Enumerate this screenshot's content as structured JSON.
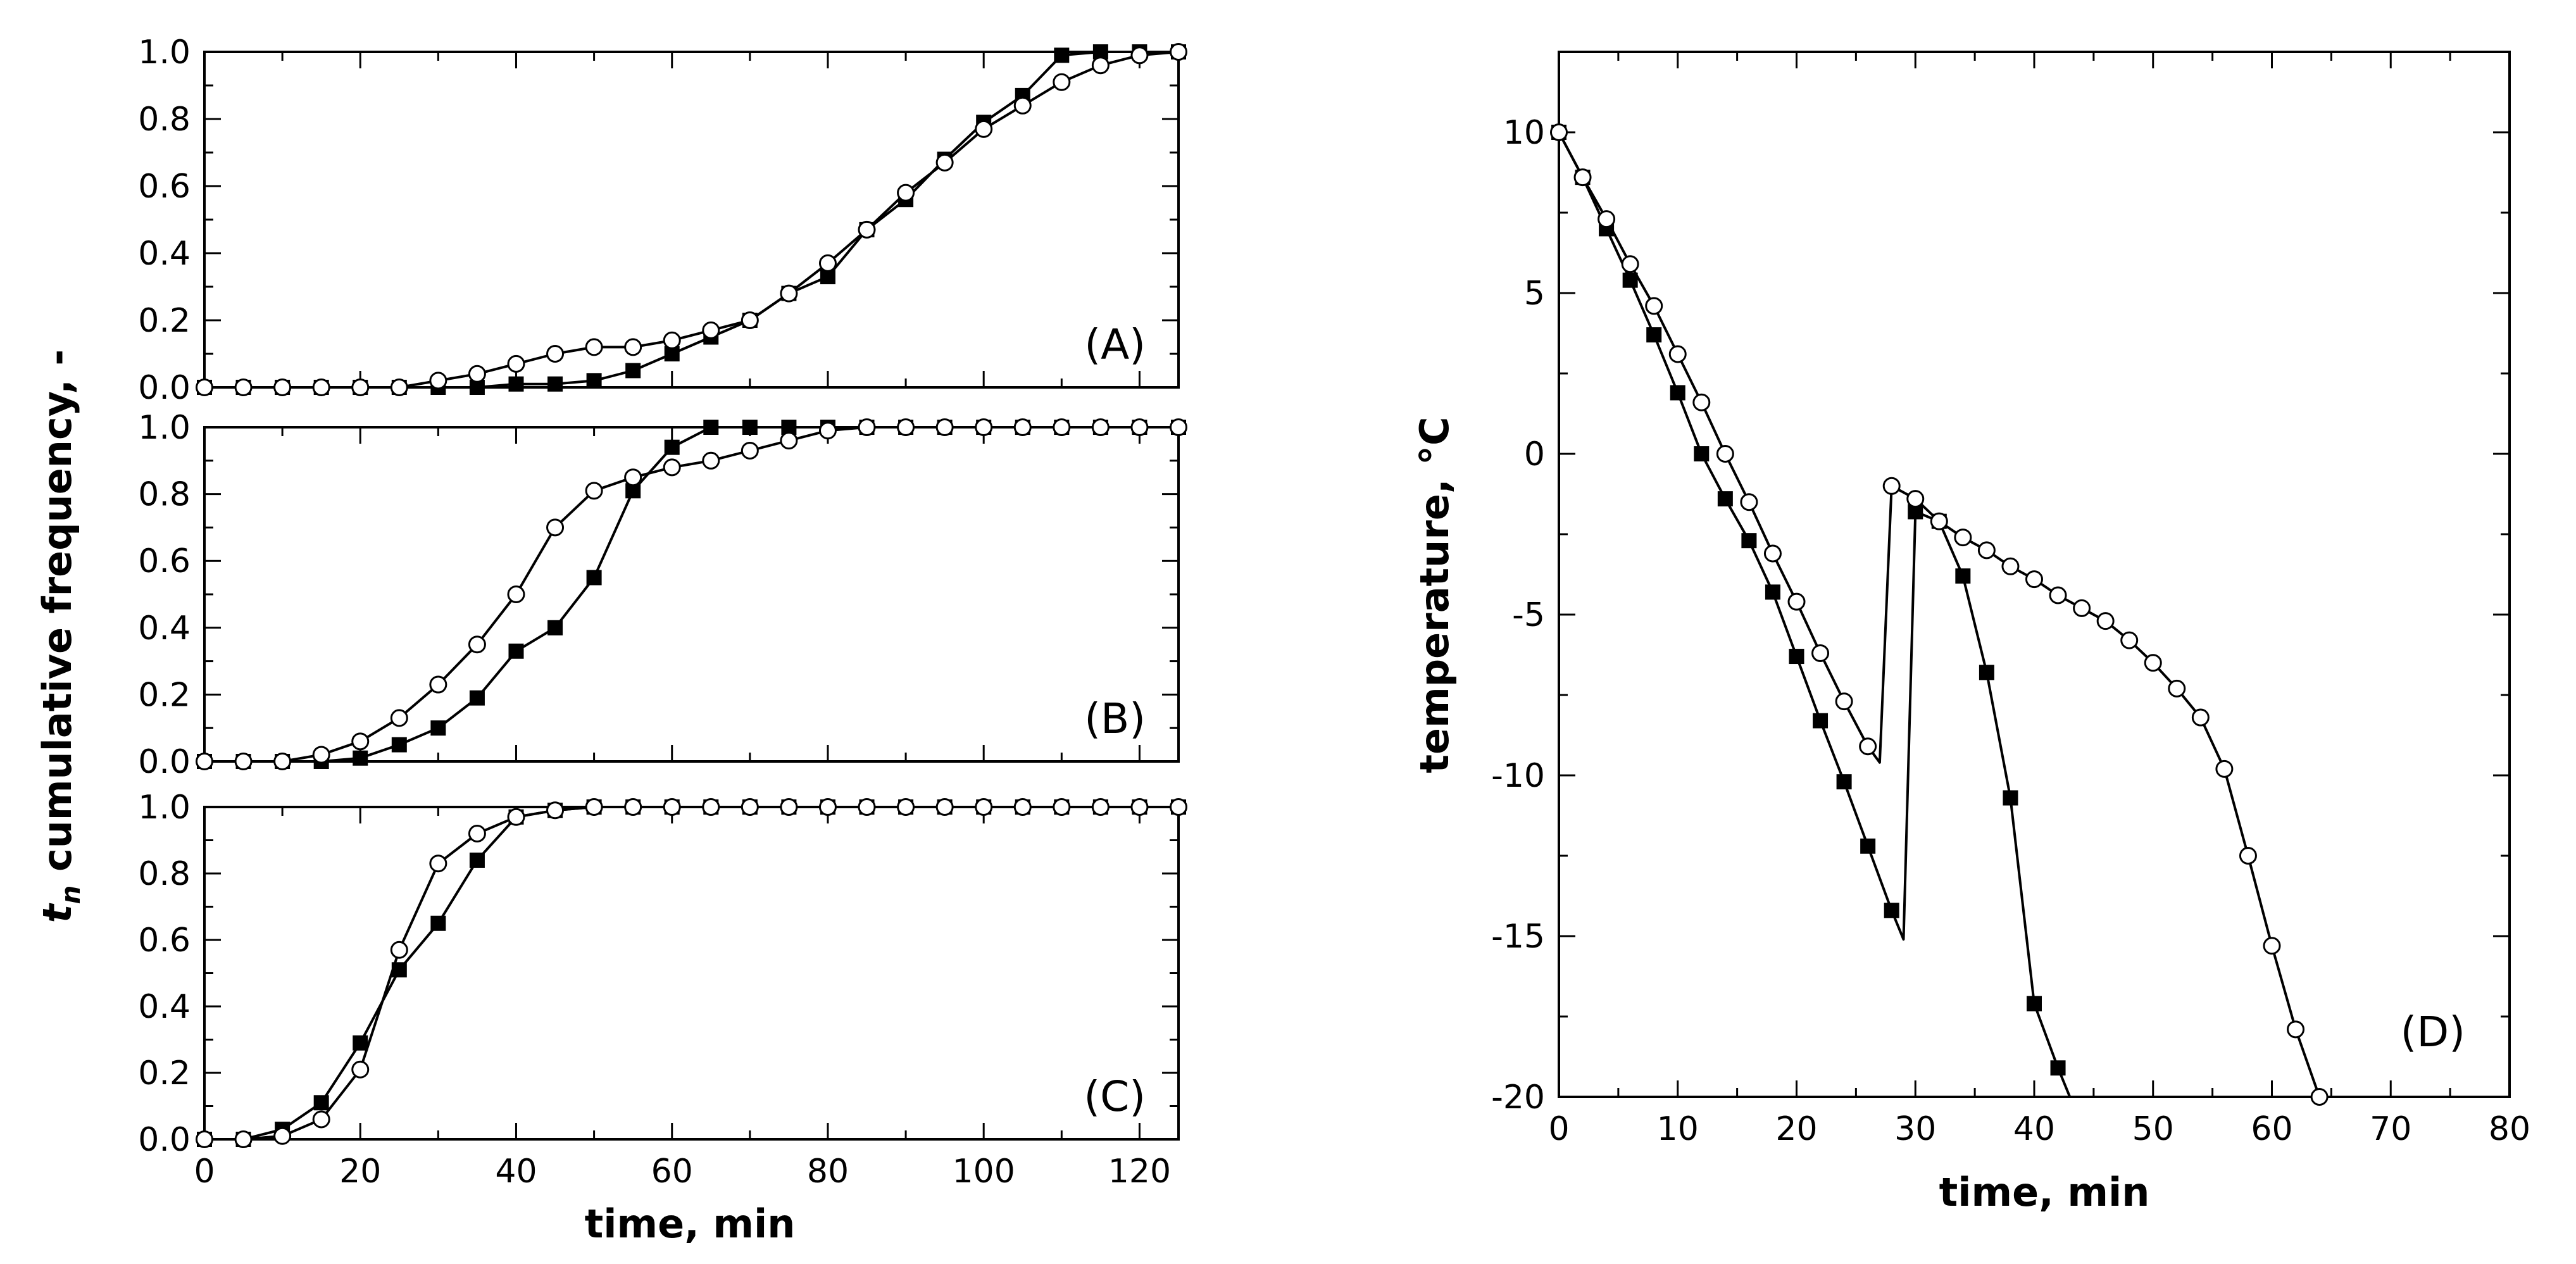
{
  "figure": {
    "left_xlabel": "time, min",
    "left_ylabel_main": "t",
    "left_ylabel_sub": "n",
    "left_ylabel_rest": " cumulative frequency, -",
    "right_xlabel": "time, min",
    "right_ylabel": "temperature, °C"
  },
  "chart_data": [
    {
      "id": "A",
      "type": "line",
      "panel_label": "(A)",
      "xlim": [
        0,
        125
      ],
      "ylim": [
        0,
        1
      ],
      "xticks": [
        0,
        20,
        40,
        60,
        80,
        100,
        120
      ],
      "yticks": [
        "0.0",
        "0.2",
        "0.4",
        "0.6",
        "0.8",
        "1.0"
      ],
      "xtick_labels_visible": false,
      "series": [
        {
          "name": "filled squares",
          "marker": "square-filled",
          "x": [
            0,
            5,
            10,
            15,
            20,
            25,
            30,
            35,
            40,
            45,
            50,
            55,
            60,
            65,
            70,
            75,
            80,
            85,
            90,
            95,
            100,
            105,
            110,
            115,
            120,
            125
          ],
          "y": [
            0,
            0,
            0,
            0,
            0,
            0,
            0,
            0,
            0.01,
            0.01,
            0.02,
            0.05,
            0.1,
            0.15,
            0.2,
            0.28,
            0.33,
            0.47,
            0.56,
            0.68,
            0.79,
            0.87,
            0.99,
            1.0,
            1.0,
            1.0
          ]
        },
        {
          "name": "open circles",
          "marker": "circle-open",
          "x": [
            0,
            5,
            10,
            15,
            20,
            25,
            30,
            35,
            40,
            45,
            50,
            55,
            60,
            65,
            70,
            75,
            80,
            85,
            90,
            95,
            100,
            105,
            110,
            115,
            120,
            125
          ],
          "y": [
            0,
            0,
            0,
            0,
            0,
            0,
            0.02,
            0.04,
            0.07,
            0.1,
            0.12,
            0.12,
            0.14,
            0.17,
            0.2,
            0.28,
            0.37,
            0.47,
            0.58,
            0.67,
            0.77,
            0.84,
            0.91,
            0.96,
            0.99,
            1.0
          ]
        }
      ]
    },
    {
      "id": "B",
      "type": "line",
      "panel_label": "(B)",
      "xlim": [
        0,
        125
      ],
      "ylim": [
        0,
        1
      ],
      "xticks": [
        0,
        20,
        40,
        60,
        80,
        100,
        120
      ],
      "yticks": [
        "0.0",
        "0.2",
        "0.4",
        "0.6",
        "0.8",
        "1.0"
      ],
      "xtick_labels_visible": false,
      "series": [
        {
          "name": "filled squares",
          "marker": "square-filled",
          "x": [
            0,
            5,
            10,
            15,
            20,
            25,
            30,
            35,
            40,
            45,
            50,
            55,
            60,
            65,
            70,
            75,
            80,
            85,
            90,
            95,
            100,
            105,
            110,
            115,
            120,
            125
          ],
          "y": [
            0,
            0,
            0,
            0,
            0.01,
            0.05,
            0.1,
            0.19,
            0.33,
            0.4,
            0.55,
            0.81,
            0.94,
            1.0,
            1.0,
            1.0,
            1.0,
            1.0,
            1.0,
            1.0,
            1.0,
            1.0,
            1.0,
            1.0,
            1.0,
            1.0
          ]
        },
        {
          "name": "open circles",
          "marker": "circle-open",
          "x": [
            0,
            5,
            10,
            15,
            20,
            25,
            30,
            35,
            40,
            45,
            50,
            55,
            60,
            65,
            70,
            75,
            80,
            85,
            90,
            95,
            100,
            105,
            110,
            115,
            120,
            125
          ],
          "y": [
            0,
            0,
            0,
            0.02,
            0.06,
            0.13,
            0.23,
            0.35,
            0.5,
            0.7,
            0.81,
            0.85,
            0.88,
            0.9,
            0.93,
            0.96,
            0.99,
            1.0,
            1.0,
            1.0,
            1.0,
            1.0,
            1.0,
            1.0,
            1.0,
            1.0
          ]
        }
      ]
    },
    {
      "id": "C",
      "type": "line",
      "panel_label": "(C)",
      "xlim": [
        0,
        125
      ],
      "ylim": [
        0,
        1
      ],
      "xticks": [
        0,
        20,
        40,
        60,
        80,
        100,
        120
      ],
      "yticks": [
        "0.0",
        "0.2",
        "0.4",
        "0.6",
        "0.8",
        "1.0"
      ],
      "xtick_labels_visible": true,
      "xlabel": "time, min",
      "series": [
        {
          "name": "filled squares",
          "marker": "square-filled",
          "x": [
            0,
            5,
            10,
            15,
            20,
            25,
            30,
            35,
            40,
            45,
            50,
            55,
            60,
            65,
            70,
            75,
            80,
            85,
            90,
            95,
            100,
            105,
            110,
            115,
            120,
            125
          ],
          "y": [
            0,
            0,
            0.03,
            0.11,
            0.29,
            0.51,
            0.65,
            0.84,
            0.97,
            0.99,
            1.0,
            1.0,
            1.0,
            1.0,
            1.0,
            1.0,
            1.0,
            1.0,
            1.0,
            1.0,
            1.0,
            1.0,
            1.0,
            1.0,
            1.0,
            1.0
          ]
        },
        {
          "name": "open circles",
          "marker": "circle-open",
          "x": [
            0,
            5,
            10,
            15,
            20,
            25,
            30,
            35,
            40,
            45,
            50,
            55,
            60,
            65,
            70,
            75,
            80,
            85,
            90,
            95,
            100,
            105,
            110,
            115,
            120,
            125
          ],
          "y": [
            0,
            0,
            0.01,
            0.06,
            0.21,
            0.57,
            0.83,
            0.92,
            0.97,
            0.99,
            1.0,
            1.0,
            1.0,
            1.0,
            1.0,
            1.0,
            1.0,
            1.0,
            1.0,
            1.0,
            1.0,
            1.0,
            1.0,
            1.0,
            1.0,
            1.0
          ]
        }
      ]
    },
    {
      "id": "D",
      "type": "line",
      "panel_label": "(D)",
      "xlim": [
        0,
        80
      ],
      "ylim": [
        -20,
        12.5
      ],
      "xticks": [
        0,
        10,
        20,
        30,
        40,
        50,
        60,
        70,
        80
      ],
      "yticks": [
        -20,
        -15,
        -10,
        -5,
        0,
        5,
        10
      ],
      "xlabel": "time, min",
      "ylabel": "temperature, °C",
      "series": [
        {
          "name": "filled squares",
          "marker": "square-filled",
          "x": [
            0,
            2,
            4,
            6,
            8,
            10,
            12,
            14,
            16,
            18,
            20,
            22,
            24,
            26,
            28,
            29,
            30,
            32,
            34,
            36,
            38,
            40,
            42,
            43
          ],
          "y": [
            10,
            8.6,
            7.0,
            5.4,
            3.7,
            1.9,
            0.0,
            -1.4,
            -2.7,
            -4.3,
            -6.3,
            -8.3,
            -10.2,
            -12.2,
            -14.2,
            -15.1,
            -1.8,
            -2.1,
            -3.8,
            -6.8,
            -10.7,
            -17.1,
            -19.1,
            -20.0
          ],
          "marker_x": [
            0,
            2,
            4,
            6,
            8,
            10,
            12,
            14,
            16,
            18,
            20,
            22,
            24,
            26,
            28,
            30,
            32,
            34,
            36,
            38,
            40,
            42
          ],
          "marker_y": [
            10,
            8.6,
            7.0,
            5.4,
            3.7,
            1.9,
            0.0,
            -1.4,
            -2.7,
            -4.3,
            -6.3,
            -8.3,
            -10.2,
            -12.2,
            -14.2,
            -1.8,
            -2.1,
            -3.8,
            -6.8,
            -10.7,
            -17.1,
            -19.1
          ]
        },
        {
          "name": "open circles",
          "marker": "circle-open",
          "x": [
            0,
            2,
            4,
            6,
            8,
            10,
            12,
            14,
            16,
            18,
            20,
            22,
            24,
            26,
            27,
            28,
            30,
            32,
            34,
            36,
            38,
            40,
            42,
            44,
            46,
            48,
            50,
            52,
            54,
            56,
            58,
            60,
            62,
            64
          ],
          "y": [
            10,
            8.6,
            7.3,
            5.9,
            4.6,
            3.1,
            1.6,
            0.0,
            -1.5,
            -3.1,
            -4.6,
            -6.2,
            -7.7,
            -9.1,
            -9.6,
            -1.0,
            -1.4,
            -2.1,
            -2.6,
            -3.0,
            -3.5,
            -3.9,
            -4.4,
            -4.8,
            -5.2,
            -5.8,
            -6.5,
            -7.3,
            -8.2,
            -9.8,
            -12.5,
            -15.3,
            -17.9,
            -20.0
          ],
          "marker_x": [
            0,
            2,
            4,
            6,
            8,
            10,
            12,
            14,
            16,
            18,
            20,
            22,
            24,
            26,
            28,
            30,
            32,
            34,
            36,
            38,
            40,
            42,
            44,
            46,
            48,
            50,
            52,
            54,
            56,
            58,
            60,
            62,
            64
          ],
          "marker_y": [
            10,
            8.6,
            7.3,
            5.9,
            4.6,
            3.1,
            1.6,
            0.0,
            -1.5,
            -3.1,
            -4.6,
            -6.2,
            -7.7,
            -9.1,
            -1.0,
            -1.4,
            -2.1,
            -2.6,
            -3.0,
            -3.5,
            -3.9,
            -4.4,
            -4.8,
            -5.2,
            -5.8,
            -6.5,
            -7.3,
            -8.2,
            -9.8,
            -12.5,
            -15.3,
            -17.9,
            -20.0
          ]
        }
      ]
    }
  ]
}
